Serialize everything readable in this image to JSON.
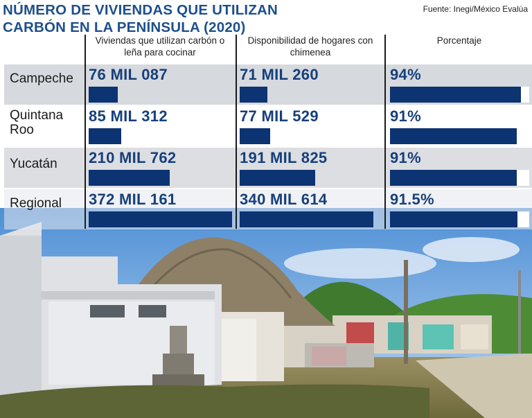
{
  "header": {
    "title_line1": "NÚMERO DE VIVIENDAS QUE UTILIZAN",
    "title_line2": "CARBÓN EN LA PENÍNSULA (2020)",
    "source": "Fuente: Inegi/México Evalúa"
  },
  "chart_data": {
    "type": "bar",
    "title": "NÚMERO DE VIVIENDAS QUE UTILIZAN CARBÓN EN LA PENÍNSULA (2020)",
    "columns": [
      "Viviendas que utilizan carbón o leña para cocinar",
      "Disponibilidad de hogares con chimenea",
      "Porcentaje"
    ],
    "categories": [
      "Campeche",
      "Quintana Roo",
      "Yucatán",
      "Regional"
    ],
    "series": [
      {
        "name": "Viviendas que utilizan carbón o leña para cocinar",
        "values": [
          76087,
          85312,
          210762,
          372161
        ],
        "labels": [
          "76 MIL 087",
          "85 MIL 312",
          "210 MIL 762",
          "372 MIL 161"
        ]
      },
      {
        "name": "Disponibilidad de hogares con chimenea",
        "values": [
          71260,
          77529,
          191825,
          340614
        ],
        "labels": [
          "71 MIL 260",
          "77 MIL 529",
          "191 MIL 825",
          "340 MIL 614"
        ]
      },
      {
        "name": "Porcentaje",
        "values": [
          94,
          91,
          91,
          91.5
        ],
        "labels": [
          "94%",
          "91%",
          "91%",
          "91.5%"
        ]
      }
    ],
    "bar_color": "#0c3372",
    "title_color": "#1d4f8c"
  }
}
